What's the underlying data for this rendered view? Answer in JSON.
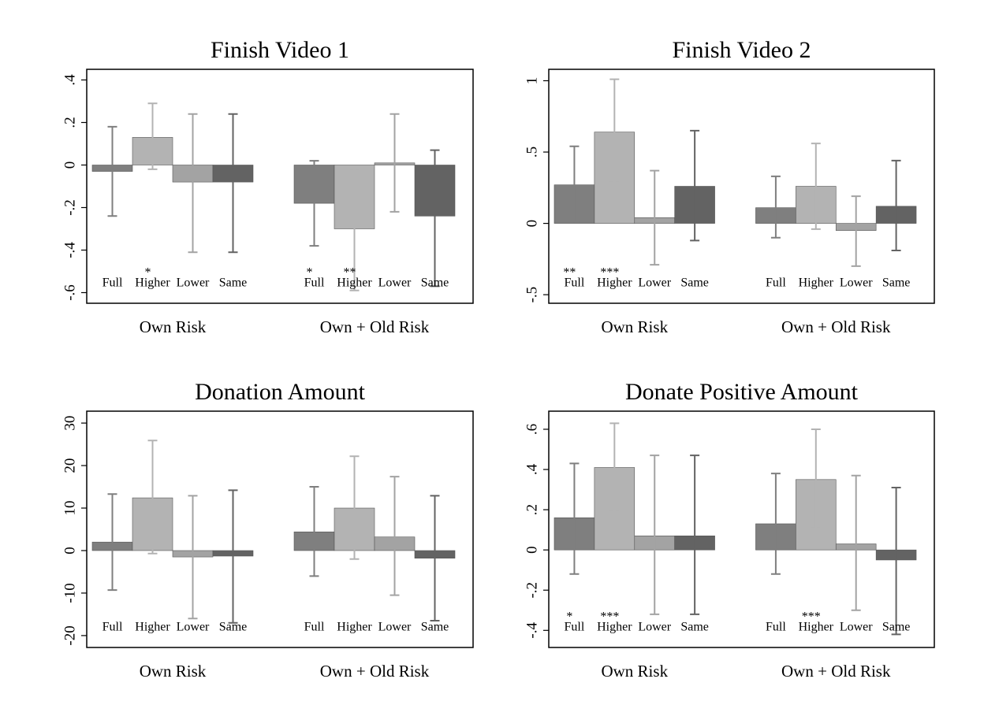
{
  "chart_data": [
    {
      "type": "bar",
      "title": "Finish Video 1",
      "groups": [
        "Own Risk",
        "Own + Old Risk"
      ],
      "ylim": [
        -0.65,
        0.45
      ],
      "yticks": [
        {
          "value": 0.4,
          "label": ".4"
        },
        {
          "value": 0.2,
          "label": ".2"
        },
        0,
        {
          "value": -0.2,
          "label": "-.2"
        },
        {
          "value": -0.4,
          "label": "-.4"
        },
        {
          "value": -0.6,
          "label": "-.6"
        }
      ],
      "series": [
        {
          "name": "Full",
          "color": "#7f7f7f",
          "values": [
            -0.03,
            -0.18
          ],
          "ci_low": [
            -0.24,
            -0.38
          ],
          "ci_high": [
            0.18,
            0.02
          ],
          "stars": [
            null,
            "*"
          ]
        },
        {
          "name": "Higher",
          "color": "#b3b3b3",
          "values": [
            0.13,
            -0.3
          ],
          "ci_low": [
            -0.02,
            -0.59
          ],
          "ci_high": [
            0.29,
            -0.02
          ],
          "stars": [
            "*",
            "**"
          ]
        },
        {
          "name": "Lower",
          "color": "#a3a3a3",
          "values": [
            -0.08,
            0.01
          ],
          "ci_low": [
            -0.41,
            -0.22
          ],
          "ci_high": [
            0.24,
            0.24
          ],
          "stars": [
            null,
            null
          ]
        },
        {
          "name": "Same",
          "color": "#636363",
          "values": [
            -0.08,
            -0.24
          ],
          "ci_low": [
            -0.41,
            -0.57
          ],
          "ci_high": [
            0.24,
            0.07
          ],
          "stars": [
            null,
            null
          ]
        }
      ]
    },
    {
      "type": "bar",
      "title": "Finish Video 2",
      "groups": [
        "Own Risk",
        "Own + Old Risk"
      ],
      "ylim": [
        -0.56,
        1.08
      ],
      "yticks": [
        1,
        {
          "value": 0.5,
          "label": ".5"
        },
        0,
        {
          "value": -0.5,
          "label": "-.5"
        }
      ],
      "series": [
        {
          "name": "Full",
          "color": "#7f7f7f",
          "values": [
            0.27,
            0.11
          ],
          "ci_low": [
            0.01,
            -0.1
          ],
          "ci_high": [
            0.54,
            0.33
          ],
          "stars": [
            "**",
            null
          ]
        },
        {
          "name": "Higher",
          "color": "#b3b3b3",
          "values": [
            0.64,
            0.26
          ],
          "ci_low": [
            0.29,
            -0.04
          ],
          "ci_high": [
            1.01,
            0.56
          ],
          "stars": [
            "***",
            null
          ]
        },
        {
          "name": "Lower",
          "color": "#a3a3a3",
          "values": [
            0.04,
            -0.05
          ],
          "ci_low": [
            -0.29,
            -0.3
          ],
          "ci_high": [
            0.37,
            0.19
          ],
          "stars": [
            null,
            null
          ]
        },
        {
          "name": "Same",
          "color": "#636363",
          "values": [
            0.26,
            0.12
          ],
          "ci_low": [
            -0.12,
            -0.19
          ],
          "ci_high": [
            0.65,
            0.44
          ],
          "stars": [
            null,
            null
          ]
        }
      ]
    },
    {
      "type": "bar",
      "title": "Donation Amount",
      "groups": [
        "Own Risk",
        "Own + Old Risk"
      ],
      "ylim": [
        -22.8,
        32.8
      ],
      "yticks": [
        30,
        20,
        10,
        0,
        -10,
        -20
      ],
      "series": [
        {
          "name": "Full",
          "color": "#7f7f7f",
          "values": [
            2,
            4.4
          ],
          "ci_low": [
            -9.3,
            -6
          ],
          "ci_high": [
            13.3,
            15
          ],
          "stars": [
            null,
            null
          ]
        },
        {
          "name": "Higher",
          "color": "#b3b3b3",
          "values": [
            12.4,
            10
          ],
          "ci_low": [
            -0.7,
            -2
          ],
          "ci_high": [
            25.9,
            22.2
          ],
          "stars": [
            null,
            null
          ]
        },
        {
          "name": "Lower",
          "color": "#a3a3a3",
          "values": [
            -1.5,
            3.2
          ],
          "ci_low": [
            -16,
            -10.5
          ],
          "ci_high": [
            12.9,
            17.4
          ],
          "stars": [
            null,
            null
          ]
        },
        {
          "name": "Same",
          "color": "#636363",
          "values": [
            -1.3,
            -1.8
          ],
          "ci_low": [
            -17,
            -16.5
          ],
          "ci_high": [
            14.2,
            12.9
          ],
          "stars": [
            null,
            null
          ]
        }
      ]
    },
    {
      "type": "bar",
      "title": "Donate Positive Amount",
      "groups": [
        "Own Risk",
        "Own + Old Risk"
      ],
      "ylim": [
        -0.485,
        0.69
      ],
      "yticks": [
        {
          "value": 0.6,
          "label": ".6"
        },
        {
          "value": 0.4,
          "label": ".4"
        },
        {
          "value": 0.2,
          "label": ".2"
        },
        0,
        {
          "value": -0.2,
          "label": "-.2"
        },
        {
          "value": -0.4,
          "label": "-.4"
        }
      ],
      "series": [
        {
          "name": "Full",
          "color": "#7f7f7f",
          "values": [
            0.16,
            0.13
          ],
          "ci_low": [
            -0.12,
            -0.12
          ],
          "ci_high": [
            0.43,
            0.38
          ],
          "stars": [
            "*",
            null
          ]
        },
        {
          "name": "Higher",
          "color": "#b3b3b3",
          "values": [
            0.41,
            0.35
          ],
          "ci_low": [
            0.19,
            0.11
          ],
          "ci_high": [
            0.63,
            0.6
          ],
          "stars": [
            "***",
            "***"
          ]
        },
        {
          "name": "Lower",
          "color": "#a3a3a3",
          "values": [
            0.07,
            0.03
          ],
          "ci_low": [
            -0.32,
            -0.3
          ],
          "ci_high": [
            0.47,
            0.37
          ],
          "stars": [
            null,
            null
          ]
        },
        {
          "name": "Same",
          "color": "#636363",
          "values": [
            0.07,
            -0.05
          ],
          "ci_low": [
            -0.32,
            -0.42
          ],
          "ci_high": [
            0.47,
            0.31
          ],
          "stars": [
            null,
            null
          ]
        }
      ]
    }
  ]
}
